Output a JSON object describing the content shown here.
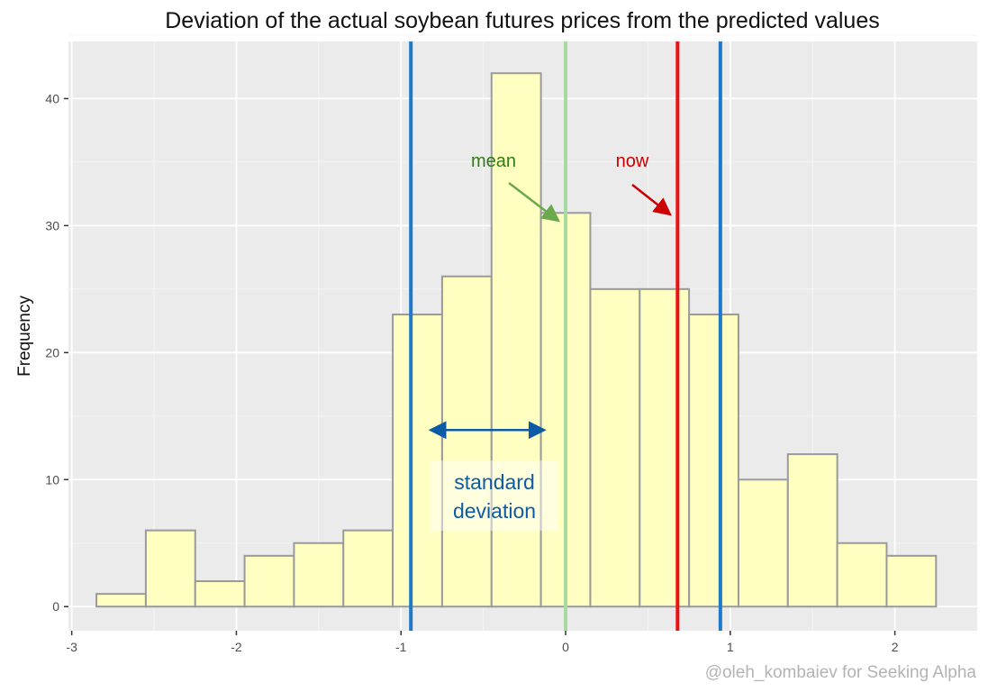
{
  "chart_data": {
    "type": "bar",
    "title": "Deviation of the actual soybean futures prices from the predicted values",
    "xlabel": "",
    "ylabel": "Frequency",
    "xlim": [
      -3.02,
      2.5
    ],
    "ylim": [
      -1.9,
      44.5
    ],
    "x_ticks": [
      -3,
      -2,
      -1,
      0,
      1,
      2
    ],
    "y_ticks": [
      0,
      10,
      20,
      30,
      40
    ],
    "bin_width": 0.3,
    "bins": [
      {
        "x0": -2.85,
        "x1": -2.55,
        "count": 1
      },
      {
        "x0": -2.55,
        "x1": -2.25,
        "count": 6
      },
      {
        "x0": -2.25,
        "x1": -1.95,
        "count": 2
      },
      {
        "x0": -1.95,
        "x1": -1.65,
        "count": 4
      },
      {
        "x0": -1.65,
        "x1": -1.35,
        "count": 5
      },
      {
        "x0": -1.35,
        "x1": -1.05,
        "count": 6
      },
      {
        "x0": -1.05,
        "x1": -0.75,
        "count": 23
      },
      {
        "x0": -0.75,
        "x1": -0.45,
        "count": 26
      },
      {
        "x0": -0.45,
        "x1": -0.15,
        "count": 42
      },
      {
        "x0": -0.15,
        "x1": 0.15,
        "count": 31
      },
      {
        "x0": 0.15,
        "x1": 0.45,
        "count": 25
      },
      {
        "x0": 0.45,
        "x1": 0.75,
        "count": 25
      },
      {
        "x0": 0.75,
        "x1": 1.05,
        "count": 23
      },
      {
        "x0": 1.05,
        "x1": 1.35,
        "count": 10
      },
      {
        "x0": 1.35,
        "x1": 1.65,
        "count": 12
      },
      {
        "x0": 1.65,
        "x1": 1.95,
        "count": 5
      },
      {
        "x0": 1.95,
        "x1": 2.25,
        "count": 4
      }
    ],
    "vlines": [
      {
        "x": -0.94,
        "color": "#1f78c8"
      },
      {
        "x": 0.0,
        "color": "#a6dba0"
      },
      {
        "x": 0.68,
        "color": "#ee1111"
      },
      {
        "x": 0.94,
        "color": "#1f78c8"
      }
    ],
    "annotations": {
      "mean": {
        "text": "mean",
        "color": "#2e7d12",
        "arrow_color": "#6aaa4c"
      },
      "now": {
        "text": "now",
        "color": "#cc0000",
        "arrow_color": "#cc0000"
      },
      "standard_deviation": {
        "line1": "standard",
        "line2": "deviation",
        "color": "#0d5aa7",
        "range": [
          -0.82,
          -0.13
        ]
      }
    },
    "colors": {
      "panel": "#ebebeb",
      "bar_fill": "#ffffc2",
      "bar_stroke": "#9a9a9a",
      "grid_major": "#ffffff",
      "grid_minor": "#f5f5f5"
    }
  },
  "credit": "@oleh_kombaiev for Seeking Alpha"
}
